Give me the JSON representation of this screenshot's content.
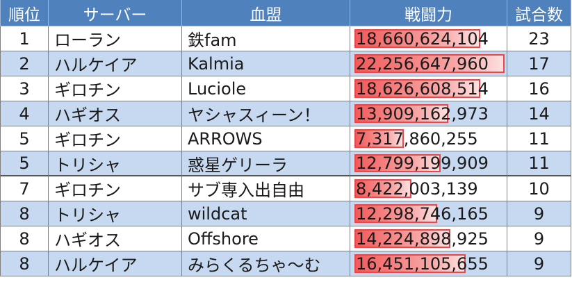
{
  "headers": {
    "rank": "順位",
    "server": "サーバー",
    "guild": "血盟",
    "power": "戦闘力",
    "games": "試合数"
  },
  "max_power": 22256647960,
  "rows": [
    {
      "rank": "1",
      "server": "ローラン",
      "guild": "鉄fam",
      "power": "18,660,624,104",
      "power_value": 18660624104,
      "games": "23"
    },
    {
      "rank": "2",
      "server": "ハルケイア",
      "guild": "Kalmia",
      "power": "22,256,647,960",
      "power_value": 22256647960,
      "games": "17"
    },
    {
      "rank": "3",
      "server": "ギロチン",
      "guild": "Luciole",
      "power": "18,626,608,514",
      "power_value": 18626608514,
      "games": "16"
    },
    {
      "rank": "4",
      "server": "ハギオス",
      "guild": "ヤシャスィーン！",
      "power": "13,909,162,973",
      "power_value": 13909162973,
      "games": "14"
    },
    {
      "rank": "5",
      "server": "ギロチン",
      "guild": "ARROWS",
      "power": "7,317,860,255",
      "power_value": 7317860255,
      "games": "11"
    },
    {
      "rank": "5",
      "server": "トリシャ",
      "guild": "惑星ゲリーラ",
      "power": "12,799,199,909",
      "power_value": 12799199909,
      "games": "11"
    },
    {
      "rank": "7",
      "server": "ギロチン",
      "guild": "サブ専入出自由",
      "power": "8,422,003,139",
      "power_value": 8422003139,
      "games": "10"
    },
    {
      "rank": "8",
      "server": "トリシャ",
      "guild": "wildcat",
      "power": "12,298,746,165",
      "power_value": 12298746165,
      "games": "9"
    },
    {
      "rank": "8",
      "server": "ハギオス",
      "guild": "Offshore",
      "power": "14,224,898,925",
      "power_value": 14224898925,
      "games": "9"
    },
    {
      "rank": "8",
      "server": "ハルケイア",
      "guild": "みらくるちゃ～む",
      "power": "16,451,105,655",
      "power_value": 16451105655,
      "games": "9"
    }
  ]
}
